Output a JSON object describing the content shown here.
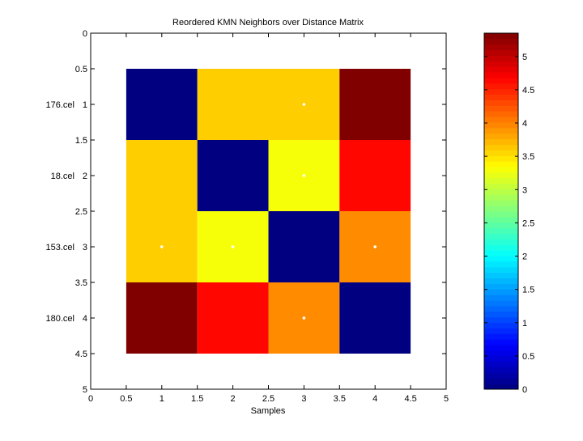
{
  "chart_data": {
    "type": "heatmap",
    "title": "Reordered KMN Neighbors over Distance Matrix",
    "xlabel": "Samples",
    "ylabel": "",
    "xlim": [
      0,
      5
    ],
    "ylim": [
      0,
      5
    ],
    "xticks": [
      "0",
      "0.5",
      "1",
      "1.5",
      "2",
      "2.5",
      "3",
      "3.5",
      "4",
      "4.5",
      "5"
    ],
    "yticks": [
      "0",
      "0.5",
      "1",
      "1.5",
      "2",
      "2.5",
      "3",
      "3.5",
      "4",
      "4.5",
      "5"
    ],
    "row_labels": [
      "176.cel",
      "18.cel",
      "153.cel",
      "180.cel"
    ],
    "values": [
      [
        0,
        3.6,
        3.6,
        5.35
      ],
      [
        3.6,
        0,
        3.3,
        4.65
      ],
      [
        3.6,
        3.3,
        0,
        3.95
      ],
      [
        5.35,
        4.65,
        3.95,
        0
      ]
    ],
    "markers": [
      [
        3,
        1
      ],
      [
        3,
        2
      ],
      [
        1,
        3
      ],
      [
        2,
        3
      ],
      [
        4,
        3
      ],
      [
        3,
        4
      ]
    ],
    "colormap": "jet",
    "clim": [
      0,
      5.35
    ],
    "colorbar_ticks": [
      "0",
      "0.5",
      "1",
      "1.5",
      "2",
      "2.5",
      "3",
      "3.5",
      "4",
      "4.5",
      "5"
    ]
  }
}
